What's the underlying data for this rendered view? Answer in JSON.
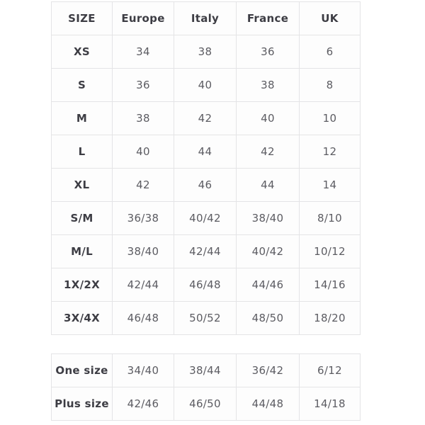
{
  "colors": {
    "background": "#ffffff",
    "table_background": "#fdfdfd",
    "border": "#e4e4e6",
    "header_text": "#3d3d44",
    "label_text": "#3d3d44",
    "value_text": "#5c5c62"
  },
  "size_chart": {
    "headers": [
      "SIZE",
      "Europe",
      "Italy",
      "France",
      "UK"
    ],
    "rows": [
      [
        "XS",
        "34",
        "38",
        "36",
        "6"
      ],
      [
        "S",
        "36",
        "40",
        "38",
        "8"
      ],
      [
        "M",
        "38",
        "42",
        "40",
        "10"
      ],
      [
        "L",
        "40",
        "44",
        "42",
        "12"
      ],
      [
        "XL",
        "42",
        "46",
        "44",
        "14"
      ],
      [
        "S/M",
        "36/38",
        "40/42",
        "38/40",
        "8/10"
      ],
      [
        "M/L",
        "38/40",
        "42/44",
        "40/42",
        "10/12"
      ],
      [
        "1X/2X",
        "42/44",
        "46/48",
        "44/46",
        "14/16"
      ],
      [
        "3X/4X",
        "46/48",
        "50/52",
        "48/50",
        "18/20"
      ]
    ]
  },
  "special_sizes": {
    "rows": [
      [
        "One size",
        "34/40",
        "38/44",
        "36/42",
        "6/12"
      ],
      [
        "Plus size",
        "42/46",
        "46/50",
        "44/48",
        "14/18"
      ]
    ]
  }
}
